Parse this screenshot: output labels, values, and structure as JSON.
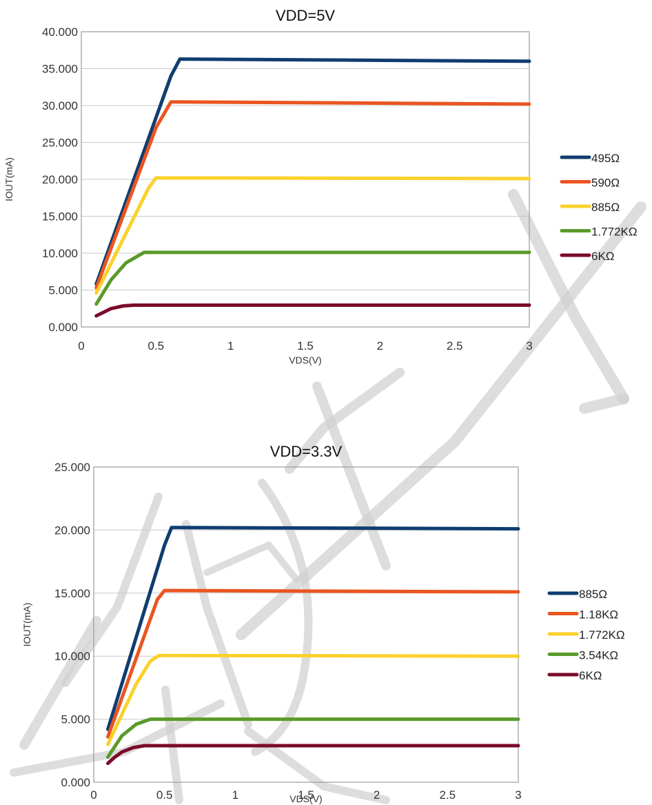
{
  "chart_data": [
    {
      "type": "line",
      "title": "VDD=5V",
      "xlabel": "VDS(V)",
      "ylabel": "IOUT(mA)",
      "xlim": [
        0,
        3
      ],
      "ylim": [
        0,
        40
      ],
      "xticks": [
        "0",
        "0.5",
        "1",
        "1.5",
        "2",
        "2.5",
        "3"
      ],
      "yticks": [
        "0.000",
        "5.000",
        "10.000",
        "15.000",
        "20.000",
        "25.000",
        "30.000",
        "35.000",
        "40.000"
      ],
      "grid": true,
      "legend": "right",
      "series": [
        {
          "name": "495Ω",
          "color": "#0f3d70",
          "points": [
            [
              0.1,
              5.8
            ],
            [
              0.6,
              34.0
            ],
            [
              0.66,
              36.3
            ],
            [
              3.0,
              36.0
            ]
          ]
        },
        {
          "name": "590Ω",
          "color": "#ea5520",
          "points": [
            [
              0.1,
              5.3
            ],
            [
              0.5,
              27.0
            ],
            [
              0.6,
              30.5
            ],
            [
              3.0,
              30.2
            ]
          ]
        },
        {
          "name": "885Ω",
          "color": "#fbd12c",
          "points": [
            [
              0.1,
              4.6
            ],
            [
              0.45,
              18.8
            ],
            [
              0.5,
              20.2
            ],
            [
              3.0,
              20.1
            ]
          ]
        },
        {
          "name": "1.772KΩ",
          "color": "#5a9a2b",
          "points": [
            [
              0.1,
              3.1
            ],
            [
              0.2,
              6.4
            ],
            [
              0.3,
              8.7
            ],
            [
              0.42,
              10.1
            ],
            [
              3.0,
              10.1
            ]
          ]
        },
        {
          "name": "6KΩ",
          "color": "#7a0a2a",
          "points": [
            [
              0.1,
              1.5
            ],
            [
              0.15,
              2.0
            ],
            [
              0.2,
              2.5
            ],
            [
              0.28,
              2.85
            ],
            [
              0.35,
              2.95
            ],
            [
              3.0,
              2.95
            ]
          ]
        }
      ]
    },
    {
      "type": "line",
      "title": "VDD=3.3V",
      "xlabel": "VDS(V)",
      "ylabel": "IOUT(mA)",
      "xlim": [
        0,
        3
      ],
      "ylim": [
        0,
        25
      ],
      "xticks": [
        "0",
        "0.5",
        "1",
        "1.5",
        "2",
        "2.5",
        "3"
      ],
      "yticks": [
        "0.000",
        "5.000",
        "10.000",
        "15.000",
        "20.000",
        "25.000"
      ],
      "grid": true,
      "legend": "right",
      "series": [
        {
          "name": "885Ω",
          "color": "#0f3d70",
          "points": [
            [
              0.1,
              4.2
            ],
            [
              0.5,
              18.8
            ],
            [
              0.55,
              20.2
            ],
            [
              3.0,
              20.1
            ]
          ]
        },
        {
          "name": "1.18KΩ",
          "color": "#ea5520",
          "points": [
            [
              0.1,
              3.6
            ],
            [
              0.45,
              14.5
            ],
            [
              0.5,
              15.2
            ],
            [
              3.0,
              15.1
            ]
          ]
        },
        {
          "name": "1.772KΩ",
          "color": "#fbd12c",
          "points": [
            [
              0.1,
              3.0
            ],
            [
              0.3,
              7.8
            ],
            [
              0.4,
              9.6
            ],
            [
              0.46,
              10.05
            ],
            [
              3.0,
              10.0
            ]
          ]
        },
        {
          "name": "3.54KΩ",
          "color": "#5a9a2b",
          "points": [
            [
              0.1,
              2.0
            ],
            [
              0.2,
              3.7
            ],
            [
              0.3,
              4.6
            ],
            [
              0.4,
              5.0
            ],
            [
              3.0,
              5.0
            ]
          ]
        },
        {
          "name": "6KΩ",
          "color": "#7a0a2a",
          "points": [
            [
              0.1,
              1.5
            ],
            [
              0.15,
              2.0
            ],
            [
              0.2,
              2.4
            ],
            [
              0.28,
              2.75
            ],
            [
              0.36,
              2.9
            ],
            [
              3.0,
              2.9
            ]
          ]
        }
      ]
    }
  ]
}
